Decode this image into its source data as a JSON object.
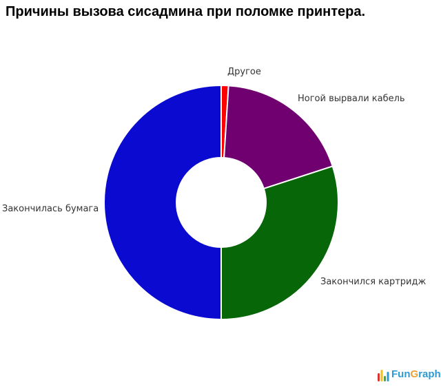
{
  "title": "Причины вызова сисадмина при поломке принтера.",
  "chart_data": {
    "type": "pie",
    "variant": "donut",
    "title": "Причины вызова сисадмина при поломке принтера.",
    "unit": "percent",
    "start_angle_deg": 0,
    "direction": "clockwise",
    "inner_radius_ratio": 0.38,
    "separator_color": "#ffffff",
    "legend": "none",
    "labels_position": "outside",
    "slices": [
      {
        "label": "Другое",
        "value": 1,
        "color": "#ff0000"
      },
      {
        "label": "Ногой вырвали кабель",
        "value": 19,
        "color": "#700070"
      },
      {
        "label": "Закончился картридж",
        "value": 30,
        "color": "#076607"
      },
      {
        "label": "Закончилась бумага",
        "value": 50,
        "color": "#0a0ad0"
      }
    ]
  },
  "logo": {
    "name": "FunGraph",
    "parts": [
      {
        "text": "Fun",
        "color": "#2d9ad2"
      },
      {
        "text": "G",
        "color": "#eda233"
      },
      {
        "text": "raph",
        "color": "#2d9ad2"
      }
    ],
    "icon_bars": [
      "#dd3330",
      "#f2c21c",
      "#44aa33",
      "#2d9ad2"
    ]
  }
}
